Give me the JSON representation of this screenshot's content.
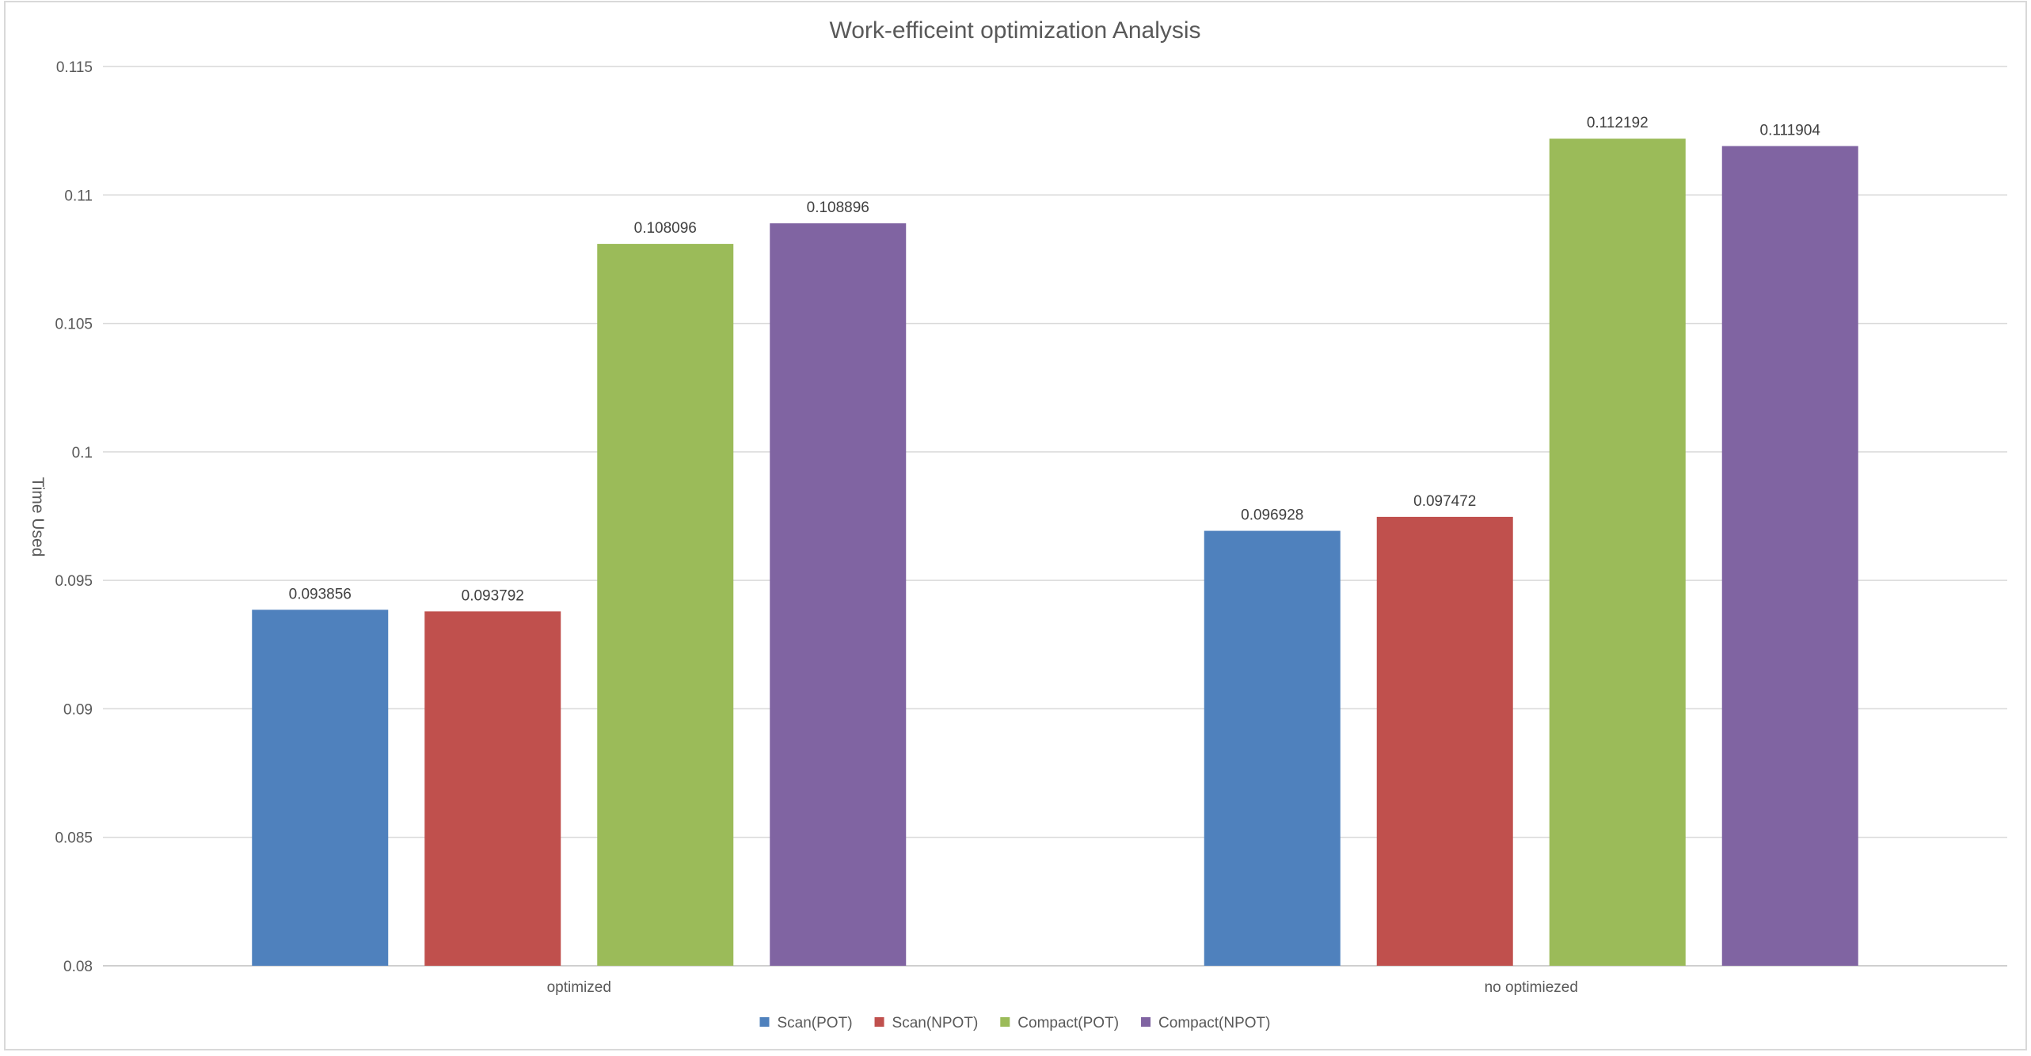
{
  "chart_data": {
    "type": "bar",
    "title": "Work-efficeint optimization Analysis",
    "xlabel": "",
    "ylabel": "Time Used",
    "ylim": [
      0.08,
      0.115
    ],
    "yticks": [
      0.08,
      0.085,
      0.09,
      0.095,
      0.1,
      0.105,
      0.11,
      0.115
    ],
    "ytick_labels": [
      "0.08",
      "0.085",
      "0.09",
      "0.095",
      "0.1",
      "0.105",
      "0.11",
      "0.115"
    ],
    "categories": [
      "optimized",
      "no optimiezed"
    ],
    "series": [
      {
        "name": "Scan(POT)",
        "color": "#4f81bd",
        "values": [
          0.093856,
          0.096928
        ],
        "labels": [
          "0.093856",
          "0.096928"
        ]
      },
      {
        "name": "Scan(NPOT)",
        "color": "#c0504d",
        "values": [
          0.093792,
          0.097472
        ],
        "labels": [
          "0.093792",
          "0.097472"
        ]
      },
      {
        "name": "Compact(POT)",
        "color": "#9bbb59",
        "values": [
          0.108096,
          0.112192
        ],
        "labels": [
          "0.108096",
          "0.112192"
        ]
      },
      {
        "name": "Compact(NPOT)",
        "color": "#8064a2",
        "values": [
          0.108896,
          0.111904
        ],
        "labels": [
          "0.108896",
          "0.111904"
        ]
      }
    ],
    "grid": true,
    "legend": "bottom"
  }
}
